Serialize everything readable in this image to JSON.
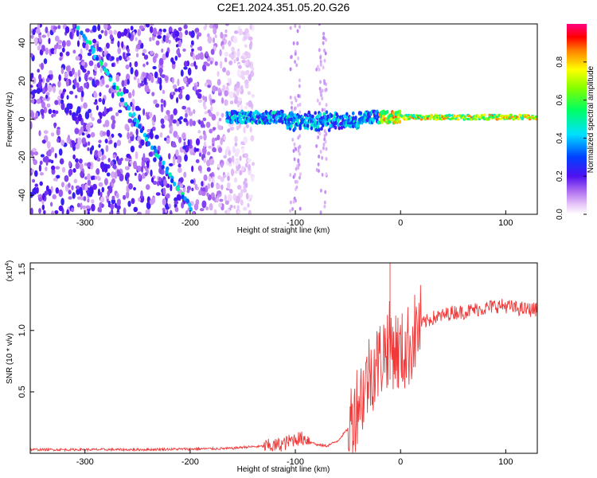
{
  "chart_data": [
    {
      "type": "heatmap",
      "title": "C2E1.2024.351.05.20.G26",
      "xlabel": "Height of straight line (km)",
      "ylabel": "Frequency (Hz)",
      "xlim": [
        -352,
        130
      ],
      "ylim": [
        -50,
        50
      ],
      "xticks": [
        -300,
        -200,
        -100,
        0,
        100
      ],
      "xtick_labels": [
        "-300",
        "-200",
        "-100",
        "0",
        "100"
      ],
      "yticks": [
        -40,
        -20,
        0,
        20,
        40
      ],
      "ytick_labels": [
        "-40",
        "-20",
        "0",
        "20",
        "40"
      ],
      "colorbar": {
        "label": "Normalized spectral amplitude",
        "range": [
          0,
          1
        ],
        "ticks": [
          0,
          0.2,
          0.4,
          0.6,
          0.8
        ],
        "tick_labels": [
          "0.0",
          "0.2",
          "0.4",
          "0.6",
          "0.8"
        ]
      },
      "features": {
        "diagonal_streak": {
          "x_start": -305,
          "y_start": 47,
          "x_end": -200,
          "y_end": -47
        },
        "noise_region_x": [
          -352,
          -140
        ],
        "sparse_columns_x": [
          [
            -105,
            -95
          ],
          [
            -80,
            -70
          ]
        ],
        "horizontal_band": {
          "x_start": -165,
          "x_end": 130,
          "y_center": 1
        }
      }
    },
    {
      "type": "line",
      "title": "",
      "xlabel": "Height of straight line (km)",
      "ylabel": "SNR (10 * v/v)",
      "y_multiplier_label": "(x10",
      "y_multiplier_exp": "4",
      "y_multiplier_close": ")",
      "xlim": [
        -352,
        130
      ],
      "ylim": [
        0,
        1.55
      ],
      "xticks": [
        -300,
        -200,
        -100,
        0,
        100
      ],
      "xtick_labels": [
        "-300",
        "-200",
        "-100",
        "0",
        "100"
      ],
      "yticks": [
        0.5,
        1.0,
        1.5
      ],
      "ytick_labels": [
        "0.5",
        "1.0",
        "1.5"
      ],
      "series": [
        {
          "name": "SNR",
          "color": "#f03a3a",
          "x": [
            -352,
            -300,
            -250,
            -200,
            -160,
            -150,
            -120,
            -110,
            -100,
            -90,
            -80,
            -70,
            -60,
            -50,
            -45,
            -40,
            -35,
            -30,
            -25,
            -20,
            -15,
            -10,
            -5,
            0,
            5,
            10,
            15,
            20,
            30,
            40,
            50,
            60,
            70,
            80,
            90,
            100,
            110,
            120,
            130
          ],
          "values": [
            0.03,
            0.03,
            0.03,
            0.035,
            0.04,
            0.05,
            0.06,
            0.08,
            0.12,
            0.12,
            0.07,
            0.06,
            0.1,
            0.2,
            0.3,
            0.45,
            0.5,
            0.65,
            0.7,
            0.75,
            0.85,
            0.9,
            0.85,
            0.8,
            0.85,
            0.9,
            1.0,
            1.05,
            1.1,
            1.12,
            1.15,
            1.15,
            1.17,
            1.18,
            1.2,
            1.2,
            1.18,
            1.17,
            1.17
          ]
        }
      ]
    }
  ]
}
